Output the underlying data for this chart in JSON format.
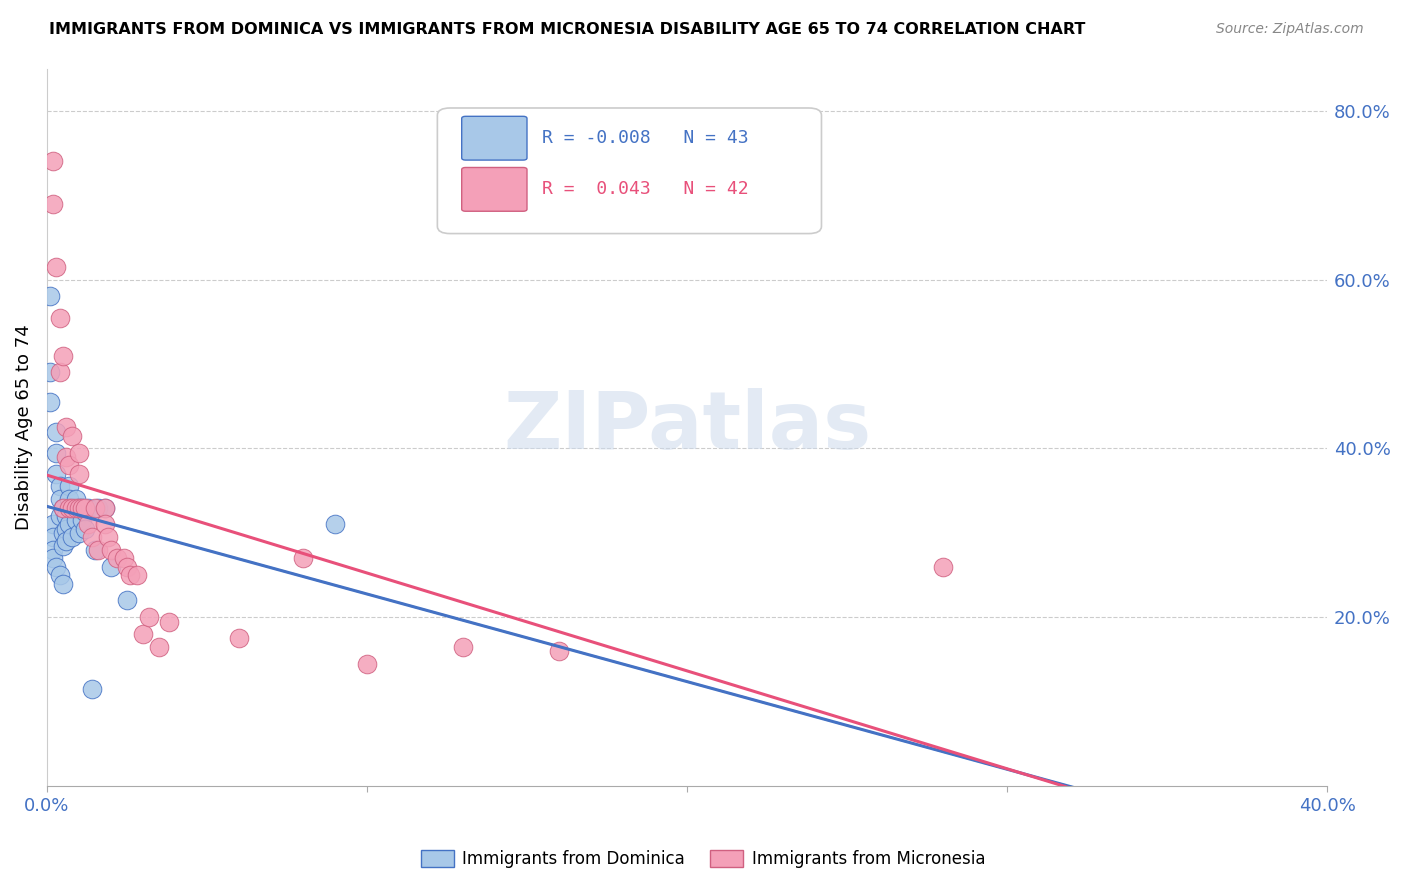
{
  "title": "IMMIGRANTS FROM DOMINICA VS IMMIGRANTS FROM MICRONESIA DISABILITY AGE 65 TO 74 CORRELATION CHART",
  "source": "Source: ZipAtlas.com",
  "ylabel": "Disability Age 65 to 74",
  "xlim": [
    0.0,
    0.4
  ],
  "ylim": [
    0.0,
    0.85
  ],
  "yticks": [
    0.2,
    0.4,
    0.6,
    0.8
  ],
  "yticklabels": [
    "20.0%",
    "40.0%",
    "60.0%",
    "80.0%"
  ],
  "color_dominica": "#a8c8e8",
  "color_micronesia": "#f4a0b8",
  "trendline_dominica_color": "#4472c4",
  "trendline_micronesia_color": "#e8507a",
  "R_dominica": -0.008,
  "N_dominica": 43,
  "R_micronesia": 0.043,
  "N_micronesia": 42,
  "watermark": "ZIPatlas",
  "dominica_x": [
    0.001,
    0.001,
    0.001,
    0.002,
    0.002,
    0.002,
    0.002,
    0.003,
    0.003,
    0.003,
    0.003,
    0.004,
    0.004,
    0.004,
    0.004,
    0.005,
    0.005,
    0.005,
    0.005,
    0.006,
    0.006,
    0.006,
    0.007,
    0.007,
    0.007,
    0.008,
    0.008,
    0.009,
    0.009,
    0.01,
    0.01,
    0.011,
    0.011,
    0.012,
    0.012,
    0.013,
    0.014,
    0.015,
    0.016,
    0.018,
    0.02,
    0.025,
    0.09
  ],
  "dominica_y": [
    0.58,
    0.49,
    0.455,
    0.31,
    0.295,
    0.28,
    0.27,
    0.42,
    0.395,
    0.37,
    0.26,
    0.355,
    0.34,
    0.32,
    0.25,
    0.33,
    0.3,
    0.285,
    0.24,
    0.32,
    0.305,
    0.29,
    0.355,
    0.34,
    0.31,
    0.33,
    0.295,
    0.34,
    0.315,
    0.33,
    0.3,
    0.33,
    0.315,
    0.325,
    0.305,
    0.33,
    0.115,
    0.28,
    0.33,
    0.33,
    0.26,
    0.22,
    0.31
  ],
  "micronesia_x": [
    0.002,
    0.002,
    0.003,
    0.004,
    0.004,
    0.005,
    0.005,
    0.006,
    0.006,
    0.007,
    0.007,
    0.008,
    0.008,
    0.009,
    0.01,
    0.01,
    0.01,
    0.011,
    0.012,
    0.013,
    0.014,
    0.015,
    0.016,
    0.018,
    0.018,
    0.019,
    0.02,
    0.022,
    0.024,
    0.025,
    0.026,
    0.028,
    0.03,
    0.032,
    0.035,
    0.038,
    0.06,
    0.08,
    0.1,
    0.13,
    0.16,
    0.28
  ],
  "micronesia_y": [
    0.74,
    0.69,
    0.615,
    0.555,
    0.49,
    0.51,
    0.33,
    0.425,
    0.39,
    0.38,
    0.33,
    0.415,
    0.33,
    0.33,
    0.395,
    0.37,
    0.33,
    0.33,
    0.33,
    0.31,
    0.295,
    0.33,
    0.28,
    0.33,
    0.31,
    0.295,
    0.28,
    0.27,
    0.27,
    0.26,
    0.25,
    0.25,
    0.18,
    0.2,
    0.165,
    0.195,
    0.175,
    0.27,
    0.145,
    0.165,
    0.16,
    0.26
  ]
}
